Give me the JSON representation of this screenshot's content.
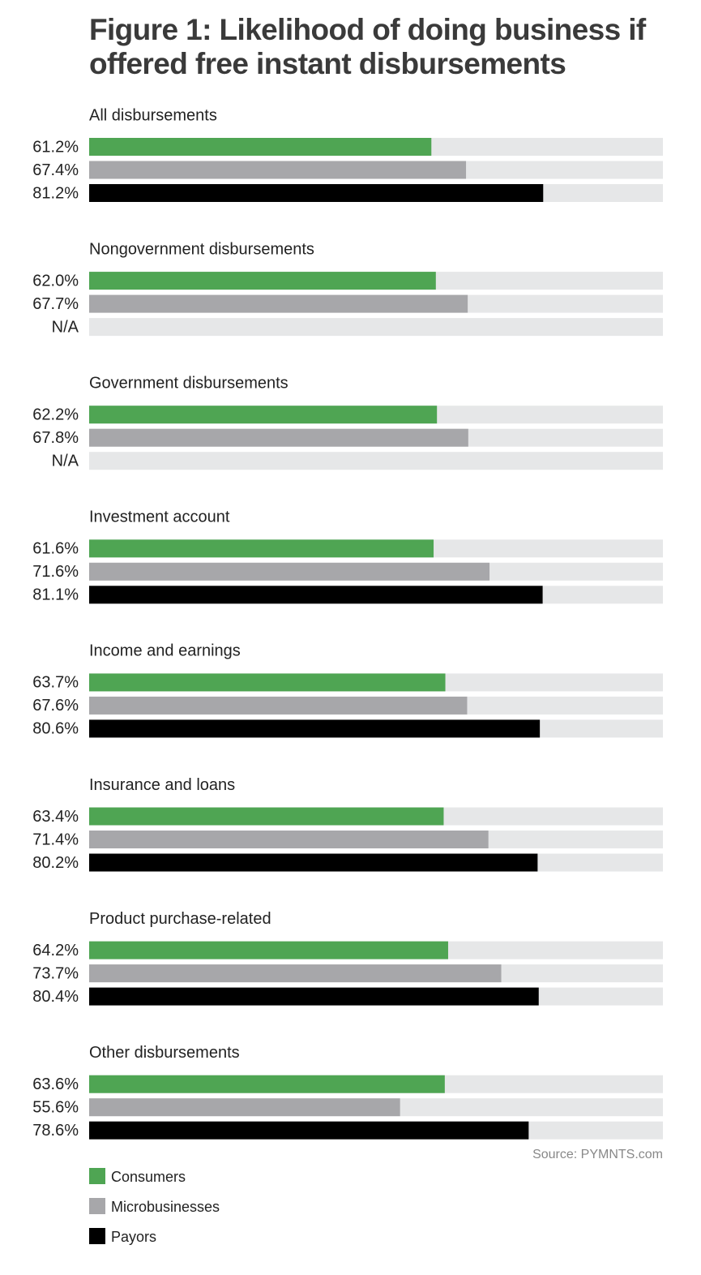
{
  "chart_data": {
    "type": "bar",
    "orientation": "horizontal",
    "title": "Figure 1: Likelihood of doing business if offered free instant disbursements",
    "categories": [
      "All disbursements",
      "Nongovernment disbursements",
      "Government disbursements",
      "Investment account",
      "Income and earnings",
      "Insurance and loans",
      "Product purchase-related",
      "Other disbursements"
    ],
    "xlim": [
      0,
      100
    ],
    "series": [
      {
        "name": "Consumers",
        "color": "#4fa553",
        "values": [
          61.2,
          62.0,
          62.2,
          61.6,
          63.7,
          63.4,
          64.2,
          63.6
        ],
        "value_labels": [
          "61.2%",
          "62.0%",
          "62.2%",
          "61.6%",
          "63.7%",
          "63.4%",
          "64.2%",
          "63.6%"
        ]
      },
      {
        "name": "Microbusinesses",
        "color": "#a7a7aa",
        "values": [
          67.4,
          67.7,
          67.8,
          71.6,
          67.6,
          71.4,
          73.7,
          55.6
        ],
        "value_labels": [
          "67.4%",
          "67.7%",
          "67.8%",
          "71.6%",
          "67.6%",
          "71.4%",
          "73.7%",
          "55.6%"
        ]
      },
      {
        "name": "Payors",
        "color": "#000000",
        "values": [
          81.2,
          null,
          null,
          81.1,
          80.6,
          80.2,
          80.4,
          78.6
        ],
        "value_labels": [
          "81.2%",
          "N/A",
          "N/A",
          "81.1%",
          "80.6%",
          "80.2%",
          "80.4%",
          "78.6%"
        ]
      }
    ],
    "source": "Source: PYMNTS.com"
  }
}
